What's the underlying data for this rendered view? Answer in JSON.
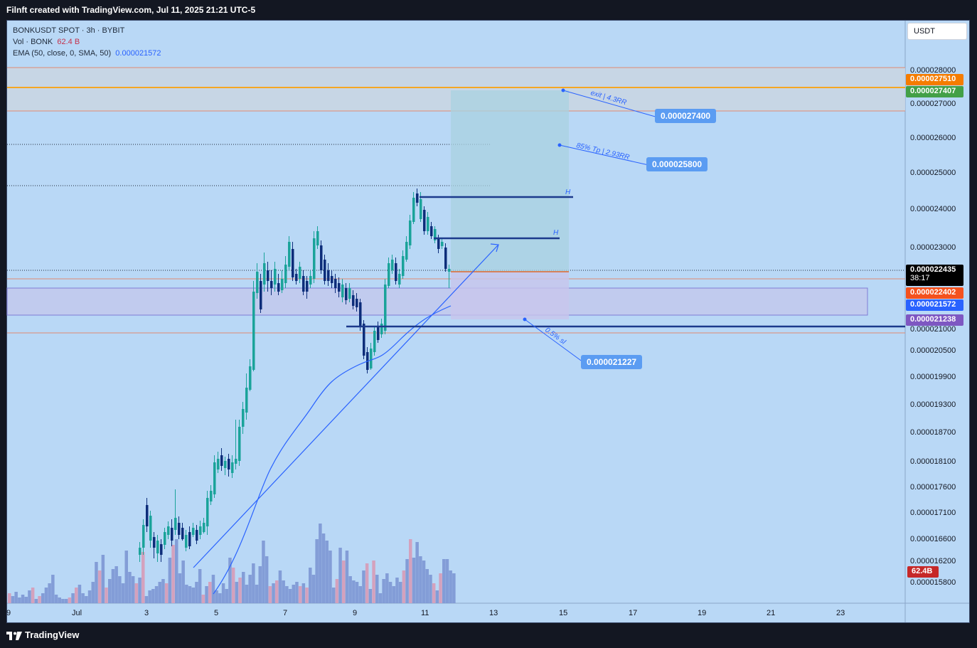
{
  "header": {
    "title": "Filnft created with TradingView.com, Jul 11, 2025 21:21 UTC-5"
  },
  "legend": {
    "symbol_line": "BONKUSDT SPOT · 3h · BYBIT",
    "vol_label": "Vol · BONK",
    "vol_value": "62.4 B",
    "ema_label": "EMA (50, close, 0, SMA, 50)",
    "ema_value": "0.000021572"
  },
  "currency": "USDT",
  "price_axis": [
    "0.000028000",
    "0.000027000",
    "0.000026000",
    "0.000025000",
    "0.000024000",
    "0.000023000",
    "0.000021000",
    "0.000020500",
    "0.000019900",
    "0.000019300",
    "0.000018700",
    "0.000018100",
    "0.000017600",
    "0.000017100",
    "0.000016600",
    "0.000016200",
    "0.000015800"
  ],
  "badges": {
    "b1": {
      "text": "0.000027510",
      "color": "#f57c00"
    },
    "b2": {
      "text": "0.000027407",
      "color": "#43a047"
    },
    "b3": {
      "text": "0.000022435",
      "sub": "38:17",
      "color": "#000000"
    },
    "b4": {
      "text": "0.000022402",
      "color": "#f4511e"
    },
    "b5": {
      "text": "0.000021572",
      "color": "#2962ff"
    },
    "b6": {
      "text": "0.000021238",
      "color": "#7e57c2"
    },
    "vol": {
      "text": "62.4B",
      "color": "#c62828"
    }
  },
  "date_axis": [
    "9",
    "Jul",
    "3",
    "5",
    "7",
    "9",
    "11",
    "13",
    "15",
    "17",
    "19",
    "21",
    "23"
  ],
  "annotations": {
    "exit_text": "exit | 4.3RR",
    "tp_text": "85% Tp | 2.93RR",
    "sl_text": "0.5% sl",
    "h_label": "H",
    "exit_callout": "0.000027400",
    "tp_callout": "0.000025800",
    "sl_callout": "0.000021227"
  },
  "footer": {
    "brand": "TradingView"
  }
}
